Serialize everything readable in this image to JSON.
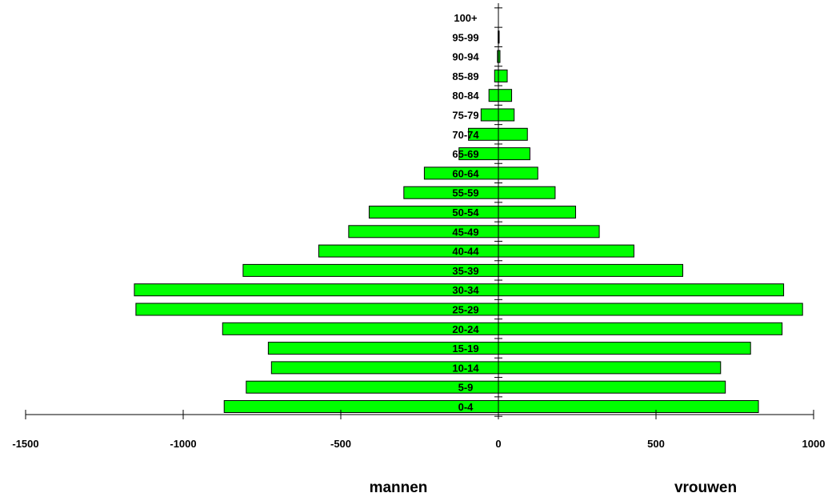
{
  "chart_data": {
    "type": "bar",
    "orientation": "horizontal",
    "categories": [
      "0-4",
      "5-9",
      "10-14",
      "15-19",
      "20-24",
      "25-29",
      "30-34",
      "35-39",
      "40-44",
      "45-49",
      "50-54",
      "55-59",
      "60-64",
      "65-69",
      "70-74",
      "75-79",
      "80-84",
      "85-89",
      "90-94",
      "95-99",
      "100+"
    ],
    "series": [
      {
        "values": [
          -870,
          -800,
          -720,
          -730,
          -875,
          -1150,
          -1155,
          -810,
          -570,
          -475,
          -410,
          -300,
          -235,
          -125,
          -95,
          -55,
          -30,
          -12,
          -3,
          -1,
          0
        ]
      },
      {
        "values": [
          825,
          720,
          705,
          800,
          900,
          965,
          905,
          585,
          430,
          320,
          245,
          180,
          125,
          100,
          92,
          50,
          42,
          28,
          5,
          2,
          0
        ]
      }
    ],
    "xlim": [
      -1500,
      1000
    ],
    "x_ticks": [
      -1500,
      -1000,
      -500,
      0,
      500,
      1000
    ],
    "x_tick_labels": [
      "-1500",
      "-1000",
      "-500",
      "0",
      "500",
      "1000"
    ],
    "left_label": "mannen",
    "right_label": "vrouwen",
    "bar_color": "#00ff00",
    "bar_stroke": "#000000"
  }
}
